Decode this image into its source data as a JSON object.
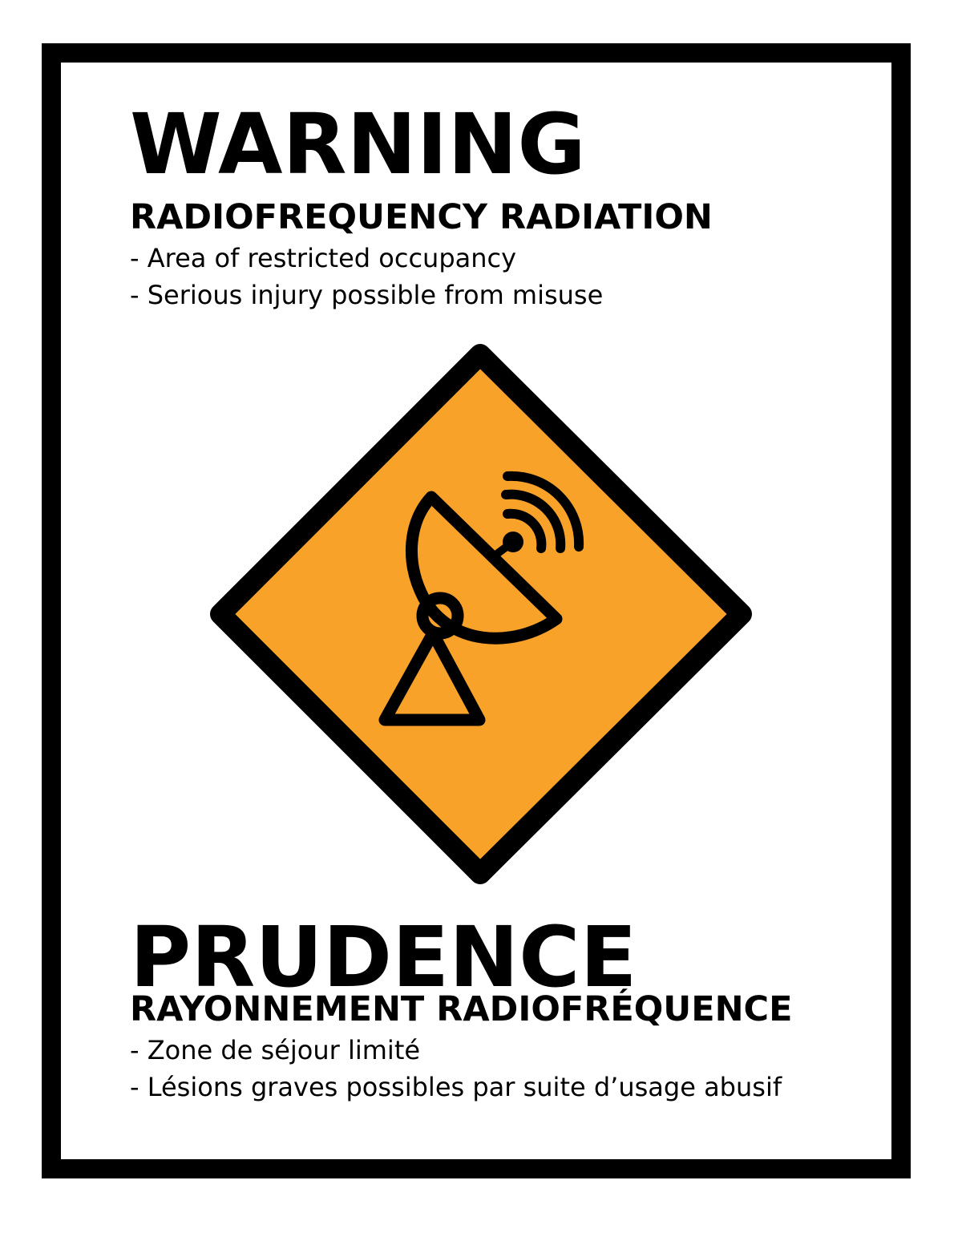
{
  "english": {
    "headline": "WARNING",
    "subheading": "RADIOFREQUENCY RADIATION",
    "bullets": [
      "- Area of restricted occupancy",
      "- Serious injury possible from misuse"
    ]
  },
  "french": {
    "headline": "PRUDENCE",
    "subheading": "RAYONNEMENT RADIOFRÉQUENCE",
    "bullets": [
      "- Zone de séjour limité",
      "- Lésions graves possibles par suite d’usage abusif"
    ]
  },
  "symbol": {
    "icon": "satellite-dish-icon",
    "fill_color": "#F8A22A",
    "stroke_color": "#000000"
  },
  "colors": {
    "frame": "#000000",
    "background": "#FFFFFF",
    "text": "#000000"
  }
}
